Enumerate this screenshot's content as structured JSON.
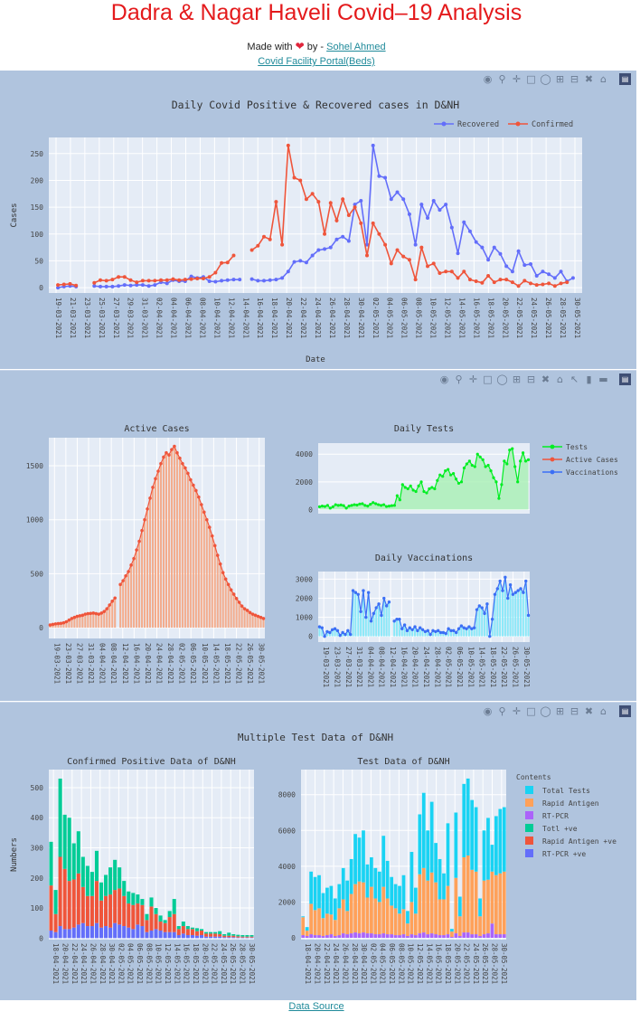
{
  "header": {
    "title": "Dadra & Nagar Haveli Covid–19 Analysis",
    "made_with": "Made with",
    "by": "by -",
    "author": "Sohel Ahmed",
    "portal_link": "Covid Facility Portal(Beds)"
  },
  "footer": {
    "data_source": "Data Source"
  },
  "colors": {
    "panel_bg": "#b0c4de",
    "plot_bg": "#e5ecf6",
    "recovered": "#636efa",
    "confirmed": "#ef553b",
    "tests": "#00ee22",
    "vaccinations": "#3b6ff5",
    "active_bar": "#f4a582",
    "total_tests": "#19d3f3",
    "rapid_antigen": "#ffa15a",
    "rt_pcr": "#ab63fa",
    "total_ve": "#00cc96",
    "rapid_antigen_ve": "#ef553b",
    "rt_pcr_ve": "#636efa",
    "title_red": "#e41a1c"
  },
  "chart_data": [
    {
      "type": "line",
      "title": "Daily Covid Positive & Recovered cases in D&NH",
      "xlabel": "Date",
      "ylabel": "Cases",
      "x_ticks": [
        "19-03-2021",
        "21-03-2021",
        "23-03-2021",
        "25-03-2021",
        "27-03-2021",
        "29-03-2021",
        "31-03-2021",
        "02-04-2021",
        "04-04-2021",
        "06-04-2021",
        "08-04-2021",
        "10-04-2021",
        "12-04-2021",
        "14-04-2021",
        "16-04-2021",
        "18-04-2021",
        "20-04-2021",
        "22-04-2021",
        "24-04-2021",
        "26-04-2021",
        "28-04-2021",
        "30-04-2021",
        "02-05-2021",
        "04-05-2021",
        "06-05-2021",
        "08-05-2021",
        "10-05-2021",
        "12-05-2021",
        "14-05-2021",
        "16-05-2021",
        "18-05-2021",
        "20-05-2021",
        "22-05-2021",
        "24-05-2021",
        "26-05-2021",
        "28-05-2021",
        "30-05-2021"
      ],
      "y_ticks": [
        0,
        50,
        100,
        150,
        200,
        250
      ],
      "ylim": [
        -10,
        280
      ],
      "legend": "top-right",
      "series": [
        {
          "name": "Recovered",
          "start": 0,
          "values": [
            0,
            2,
            3,
            2,
            null,
            null,
            3,
            2,
            2,
            2,
            3,
            5,
            4,
            5,
            5,
            3,
            5,
            10,
            8,
            14,
            12,
            12,
            21,
            18,
            20,
            12,
            11,
            13,
            14,
            15,
            15,
            null,
            16,
            13,
            13,
            14,
            15,
            18,
            30,
            48,
            50,
            47,
            60,
            70,
            72,
            75,
            90,
            95,
            87,
            155,
            162,
            80,
            265,
            208,
            205,
            165,
            178,
            165,
            137,
            80,
            155,
            130,
            162,
            145,
            155,
            112,
            64,
            122,
            105,
            85,
            75,
            52,
            75,
            63,
            40,
            30,
            68,
            42,
            44,
            22,
            30,
            25,
            18,
            30,
            12,
            18
          ]
        },
        {
          "name": "Confirmed",
          "start": 0,
          "values": [
            5,
            6,
            7,
            4,
            null,
            null,
            9,
            14,
            13,
            15,
            20,
            20,
            14,
            10,
            13,
            13,
            13,
            14,
            14,
            16,
            14,
            15,
            16,
            17,
            17,
            20,
            28,
            46,
            47,
            60,
            null,
            null,
            70,
            78,
            95,
            90,
            160,
            80,
            265,
            205,
            200,
            165,
            175,
            160,
            100,
            158,
            125,
            165,
            135,
            150,
            120,
            60,
            120,
            100,
            80,
            45,
            70,
            58,
            52,
            15,
            75,
            40,
            45,
            27,
            30,
            30,
            18,
            30,
            15,
            12,
            9,
            22,
            10,
            15,
            15,
            10,
            3,
            13,
            8,
            5,
            6,
            8,
            3,
            8,
            10,
            null
          ]
        }
      ]
    },
    {
      "type": "bar",
      "title": "Active Cases",
      "x_ticks": [
        "19-03-2021",
        "23-03-2021",
        "27-03-2021",
        "31-03-2021",
        "04-04-2021",
        "08-04-2021",
        "12-04-2021",
        "16-04-2021",
        "20-04-2021",
        "24-04-2021",
        "28-04-2021",
        "02-05-2021",
        "06-05-2021",
        "10-05-2021",
        "14-05-2021",
        "18-05-2021",
        "22-05-2021",
        "26-05-2021",
        "30-05-2021"
      ],
      "y_ticks": [
        0,
        500,
        1000,
        1500
      ],
      "ylim": [
        -100,
        1760
      ],
      "values": [
        25,
        30,
        35,
        38,
        40,
        45,
        55,
        70,
        85,
        95,
        105,
        110,
        115,
        125,
        130,
        132,
        135,
        130,
        125,
        135,
        150,
        175,
        210,
        245,
        275,
        null,
        400,
        435,
        480,
        520,
        580,
        640,
        720,
        800,
        900,
        1000,
        1100,
        1200,
        1300,
        1380,
        1450,
        1520,
        1580,
        1620,
        1600,
        1650,
        1680,
        1620,
        1570,
        1520,
        1480,
        1430,
        1370,
        1320,
        1270,
        1210,
        1140,
        1070,
        1000,
        930,
        850,
        760,
        670,
        590,
        510,
        450,
        400,
        350,
        310,
        270,
        235,
        200,
        175,
        160,
        140,
        125,
        115,
        105,
        95,
        85
      ]
    },
    {
      "type": "area",
      "title": "Daily Tests",
      "y_ticks": [
        0,
        2000,
        4000
      ],
      "ylim": [
        -300,
        4800
      ],
      "legend": [
        "Tests",
        "Active Cases",
        "Vaccinations"
      ],
      "values": [
        200,
        250,
        220,
        300,
        100,
        200,
        350,
        300,
        330,
        280,
        100,
        250,
        300,
        350,
        320,
        400,
        420,
        300,
        250,
        380,
        500,
        420,
        350,
        300,
        350,
        220,
        250,
        280,
        300,
        1000,
        700,
        1800,
        1600,
        1500,
        1700,
        1400,
        1300,
        1700,
        2000,
        1300,
        1200,
        1500,
        1600,
        1500,
        2100,
        2500,
        2400,
        2800,
        2900,
        2500,
        2600,
        2200,
        1900,
        2000,
        3000,
        3300,
        3500,
        3200,
        3100,
        4000,
        3800,
        3600,
        3100,
        3200,
        2800,
        2300,
        2000,
        800,
        1800,
        3500,
        3300,
        4300,
        4400,
        3100,
        2000,
        3500,
        4100,
        3500,
        3600
      ]
    },
    {
      "type": "bar",
      "title": "Daily Vaccinations",
      "x_ticks": [
        "19-03-2021",
        "23-03-2021",
        "27-03-2021",
        "31-03-2021",
        "04-04-2021",
        "08-04-2021",
        "12-04-2021",
        "16-04-2021",
        "20-04-2021",
        "24-04-2021",
        "28-04-2021",
        "02-05-2021",
        "06-05-2021",
        "10-05-2021",
        "14-05-2021",
        "18-05-2021",
        "22-05-2021",
        "26-05-2021",
        "30-05-2021"
      ],
      "y_ticks": [
        0,
        1000,
        2000,
        3000
      ],
      "ylim": [
        -300,
        3400
      ],
      "values": [
        500,
        450,
        0,
        250,
        200,
        350,
        400,
        300,
        50,
        200,
        100,
        300,
        100,
        2400,
        2300,
        2200,
        1300,
        2400,
        1000,
        2300,
        800,
        1200,
        1500,
        1700,
        1100,
        2000,
        1600,
        1800,
        null,
        800,
        900,
        900,
        400,
        600,
        300,
        450,
        350,
        500,
        300,
        450,
        350,
        250,
        300,
        100,
        300,
        250,
        300,
        200,
        200,
        150,
        400,
        300,
        300,
        200,
        400,
        550,
        450,
        400,
        500,
        400,
        450,
        1400,
        1600,
        1500,
        1200,
        1700,
        0,
        900,
        2200,
        2500,
        2900,
        2400,
        3100,
        2000,
        2700,
        2200,
        2300,
        2400,
        2500,
        2300,
        2900,
        1100
      ]
    },
    {
      "type": "bar",
      "title": "Multiple Test Data of D&NH",
      "subtitle": "Confirmed Positive Data of D&NH",
      "ylabel": "Numbers",
      "x_ticks": [
        "18-04-2021",
        "20-04-2021",
        "22-04-2021",
        "24-04-2021",
        "26-04-2021",
        "28-04-2021",
        "30-04-2021",
        "02-05-2021",
        "04-05-2021",
        "06-05-2021",
        "08-05-2021",
        "10-05-2021",
        "12-05-2021",
        "14-05-2021",
        "16-05-2021",
        "18-05-2021",
        "20-05-2021",
        "22-05-2021",
        "24-05-2021",
        "26-05-2021",
        "28-05-2021",
        "30-05-2021"
      ],
      "y_ticks": [
        0,
        100,
        200,
        300,
        400,
        500
      ],
      "ylim": [
        -5,
        560
      ],
      "series": [
        {
          "name": "RT-PCR +ve",
          "values": [
            25,
            20,
            40,
            30,
            30,
            35,
            45,
            50,
            40,
            40,
            50,
            35,
            40,
            35,
            50,
            45,
            40,
            35,
            30,
            45,
            40,
            20,
            25,
            30,
            25,
            20,
            20,
            20,
            10,
            15,
            10,
            10,
            8,
            10,
            5,
            5,
            5,
            5,
            3,
            3,
            3,
            2,
            2,
            2,
            2
          ]
        },
        {
          "name": "Rapid Antigen +ve",
          "values": [
            150,
            60,
            230,
            200,
            160,
            160,
            170,
            120,
            100,
            100,
            140,
            90,
            100,
            110,
            110,
            120,
            100,
            80,
            80,
            70,
            70,
            40,
            80,
            50,
            30,
            30,
            50,
            60,
            20,
            25,
            20,
            20,
            15,
            15,
            10,
            10,
            10,
            8,
            5,
            5,
            5,
            4,
            3,
            3,
            3
          ]
        },
        {
          "name": "Totl +ve",
          "values": [
            145,
            80,
            260,
            180,
            210,
            120,
            140,
            100,
            100,
            80,
            100,
            60,
            70,
            90,
            100,
            70,
            50,
            40,
            40,
            30,
            20,
            20,
            30,
            20,
            20,
            10,
            20,
            50,
            10,
            15,
            10,
            5,
            10,
            5,
            5,
            5,
            5,
            10,
            5,
            10,
            5,
            5,
            5,
            5,
            5
          ]
        }
      ]
    },
    {
      "type": "bar",
      "title": "Test Data of D&NH",
      "legend_title": "Contents",
      "y_ticks": [
        0,
        2000,
        4000,
        6000,
        8000
      ],
      "ylim": [
        -100,
        9400
      ],
      "series": [
        {
          "name": "Total Tests",
          "values": [
            1200,
            600,
            3700,
            3400,
            3500,
            2500,
            2800,
            2900,
            2200,
            3000,
            3900,
            3200,
            4400,
            5800,
            5600,
            6000,
            4100,
            4500,
            3900,
            3700,
            5700,
            4300,
            3400,
            3000,
            2900,
            3500,
            1500,
            4800,
            2800,
            6900,
            8100,
            6000,
            7600,
            5300,
            4400,
            3600,
            6400,
            500,
            7000,
            2300,
            8600,
            8900,
            7700,
            7300,
            2200,
            6000,
            6700,
            5200,
            6800,
            7200,
            7300
          ]
        },
        {
          "name": "Rapid Antigen",
          "values": [
            1000,
            300,
            1700,
            1400,
            1500,
            1000,
            1200,
            1100,
            900,
            1500,
            1900,
            1300,
            2200,
            2700,
            2900,
            2800,
            2000,
            2600,
            2000,
            1800,
            2600,
            2000,
            1600,
            1500,
            1200,
            1400,
            700,
            1800,
            1200,
            3300,
            3600,
            3000,
            3400,
            2900,
            2000,
            2000,
            2700,
            300,
            3100,
            1100,
            4200,
            4300,
            3600,
            3500,
            1100,
            3000,
            3000,
            2900,
            3300,
            3400,
            3500
          ]
        },
        {
          "name": "RT-PCR",
          "values": [
            150,
            100,
            200,
            150,
            150,
            100,
            150,
            200,
            100,
            150,
            250,
            200,
            250,
            300,
            250,
            300,
            250,
            250,
            200,
            200,
            250,
            200,
            200,
            150,
            150,
            200,
            100,
            200,
            150,
            250,
            300,
            200,
            250,
            200,
            150,
            150,
            200,
            50,
            250,
            100,
            300,
            300,
            200,
            200,
            100,
            200,
            250,
            800,
            200,
            200,
            200
          ]
        },
        {
          "name": "Totl +ve",
          "values": []
        },
        {
          "name": "Rapid Antigen +ve",
          "values": []
        },
        {
          "name": "RT-PCR +ve",
          "values": []
        }
      ]
    }
  ]
}
